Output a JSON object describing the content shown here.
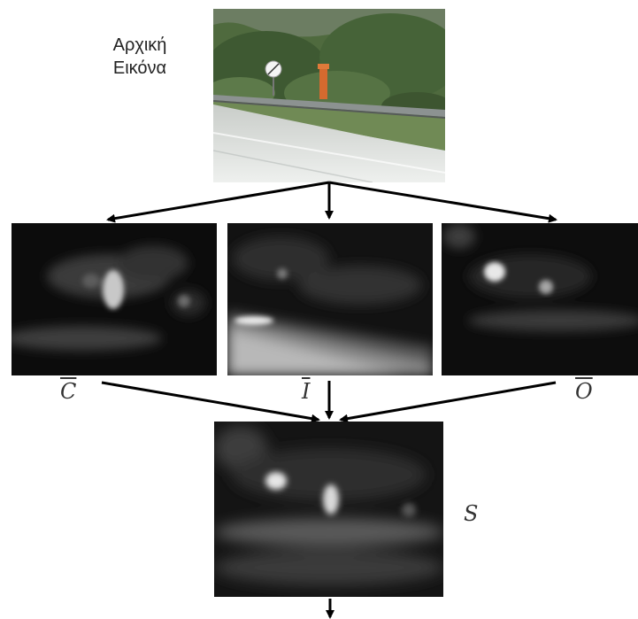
{
  "input_caption": {
    "line1": "Αρχική",
    "line2": "Εικόνα"
  },
  "map_labels": {
    "color": "C",
    "intensity": "I",
    "orientation": "O",
    "saliency": "S"
  }
}
